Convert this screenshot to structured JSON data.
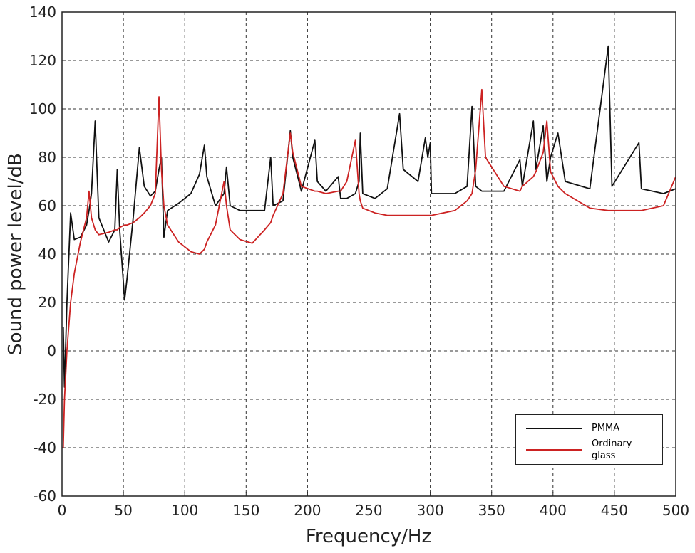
{
  "chart_data": {
    "type": "line",
    "x_label": "Frequency/Hz",
    "y_label": "Sound power level/dB",
    "xlim": [
      0,
      500
    ],
    "xticks": [
      0,
      50,
      100,
      150,
      200,
      250,
      300,
      350,
      400,
      450,
      500
    ],
    "ylim": [
      -60,
      140
    ],
    "yticks": [
      -60,
      -40,
      -20,
      0,
      20,
      40,
      60,
      80,
      100,
      120,
      140
    ],
    "grid": true,
    "x": [
      1,
      2,
      4,
      7,
      10,
      15,
      20,
      22,
      24,
      27,
      30,
      38,
      43,
      45,
      47,
      51,
      53,
      58,
      63,
      67,
      72,
      76,
      79,
      81,
      83,
      86,
      95,
      105,
      112,
      116,
      118,
      125,
      132,
      134,
      137,
      145,
      155,
      165,
      170,
      172,
      180,
      186,
      188,
      195,
      206,
      208,
      215,
      225,
      227,
      232,
      239,
      242,
      243,
      245,
      255,
      265,
      275,
      278,
      290,
      296,
      298,
      300,
      301,
      320,
      330,
      334,
      337,
      342,
      345,
      360,
      373,
      375,
      384,
      386,
      392,
      395,
      398,
      404,
      410,
      430,
      445,
      448,
      470,
      472,
      490,
      500
    ],
    "series": [
      {
        "name": "PMMA",
        "color": "#111111",
        "values": [
          10,
          -15,
          20,
          57,
          46,
          47,
          52,
          58,
          65,
          95,
          55,
          45,
          50,
          75,
          50,
          21,
          30,
          55,
          84,
          68,
          64,
          66,
          75,
          80,
          47,
          58,
          61,
          65,
          73,
          85,
          72,
          60,
          65,
          76,
          60,
          58,
          58,
          58,
          80,
          60,
          62,
          91,
          80,
          66,
          87,
          70,
          66,
          72,
          63,
          63,
          65,
          70,
          90,
          65,
          63,
          67,
          98,
          75,
          70,
          88,
          80,
          86,
          65,
          65,
          68,
          101,
          68,
          66,
          66,
          66,
          79,
          68,
          95,
          75,
          93,
          70,
          80,
          90,
          70,
          67,
          126,
          68,
          86,
          67,
          65,
          67
        ]
      },
      {
        "name": "Ordinary glass",
        "color": "#cc2222",
        "values": [
          -40,
          -20,
          0,
          20,
          32,
          45,
          55,
          66,
          55,
          50,
          48,
          49,
          50,
          50,
          51,
          52,
          52,
          53,
          55,
          57,
          60,
          65,
          105,
          75,
          60,
          52,
          45,
          41,
          40,
          42,
          45,
          52,
          70,
          60,
          50,
          46,
          44.5,
          50,
          53,
          56,
          65,
          90,
          82,
          68,
          66,
          66,
          65,
          66,
          66,
          70,
          87,
          65,
          62,
          59,
          57,
          56,
          56,
          56,
          56,
          56,
          56,
          56,
          56,
          58,
          62,
          65,
          75,
          108,
          80,
          68,
          66,
          68,
          72,
          74,
          82,
          95,
          74,
          68,
          65,
          59,
          58,
          58,
          58,
          58,
          60,
          72
        ]
      }
    ]
  }
}
